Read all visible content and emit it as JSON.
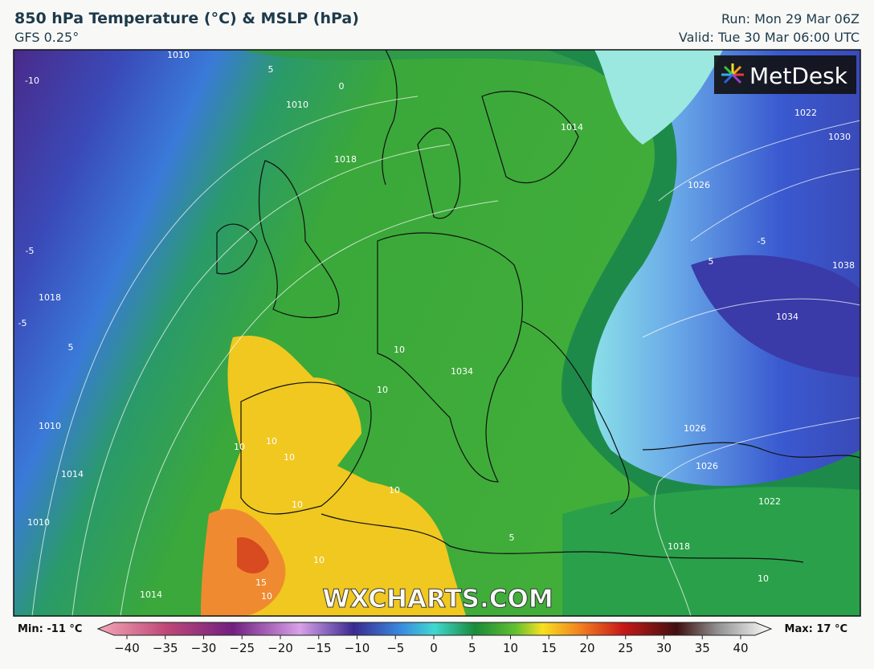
{
  "header": {
    "title": "850 hPa Temperature (°C) & MSLP (hPa)",
    "model": "GFS 0.25°",
    "run": "Run: Mon 29 Mar 06Z",
    "valid": "Valid: Tue 30 Mar 06:00 UTC"
  },
  "map": {
    "logo": "MetDesk",
    "watermark": "WXCHARTS.COM",
    "contour_labels": [
      "1010",
      "-10",
      "1010",
      "0",
      "5",
      "1018",
      "1014",
      "1022",
      "1030",
      "1026",
      "-5",
      "5",
      "1038",
      "1034",
      "-5",
      "1018",
      "-5",
      "5",
      "10",
      "10",
      "1034",
      "1026",
      "1026",
      "1022",
      "1010",
      "1014",
      "1010",
      "10",
      "10",
      "10",
      "10",
      "10",
      "10",
      "15",
      "10",
      "5",
      "1018",
      "10",
      "1014"
    ]
  },
  "legend": {
    "min": "Min: -11 °C",
    "max": "Max: 17 °C",
    "ticks": [
      "−40",
      "−35",
      "−30",
      "−25",
      "−20",
      "−15",
      "−10",
      "−5",
      "0",
      "5",
      "10",
      "15",
      "20",
      "25",
      "30",
      "35",
      "40"
    ]
  }
}
